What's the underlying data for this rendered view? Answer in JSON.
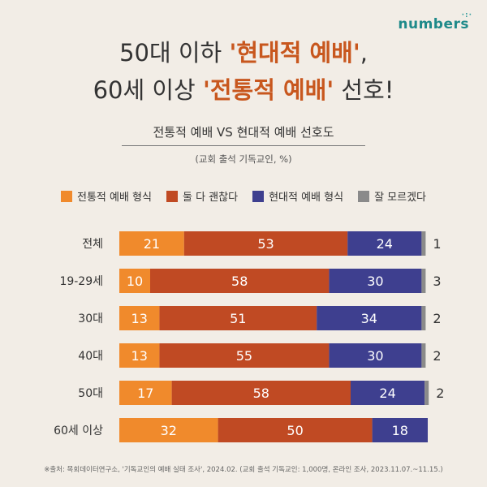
{
  "brand": {
    "logo_text": "numbers"
  },
  "headline": {
    "line1_pre": "50대 이하 ",
    "line1_highlight": "'현대적 예배'",
    "line1_post": ",",
    "line2_pre": "60세 이상 ",
    "line2_highlight": "'전통적 예배'",
    "line2_post": " 선호!"
  },
  "subtitle": "전통적 예배 VS 현대적 예배 선호도",
  "note": "(교회 출석 기독교인, %)",
  "legend": [
    {
      "label": "전통적 예배 형식",
      "color": "#f08a2c"
    },
    {
      "label": "둘 다 괜찮다",
      "color": "#c04a23"
    },
    {
      "label": "현대적 예배 형식",
      "color": "#3e3f8f"
    },
    {
      "label": "잘 모르겠다",
      "color": "#8a8a8a"
    }
  ],
  "chart_data": {
    "type": "bar",
    "orientation": "horizontal",
    "stacked": true,
    "title": "전통적 예배 VS 현대적 예배 선호도",
    "unit": "%",
    "categories": [
      "전체",
      "19-29세",
      "30대",
      "40대",
      "50대",
      "60세 이상"
    ],
    "series": [
      {
        "name": "전통적 예배 형식",
        "color": "#f08a2c",
        "values": [
          21,
          10,
          13,
          13,
          17,
          32
        ]
      },
      {
        "name": "둘 다 괜찮다",
        "color": "#c04a23",
        "values": [
          53,
          58,
          51,
          55,
          58,
          50
        ]
      },
      {
        "name": "현대적 예배 형식",
        "color": "#3e3f8f",
        "values": [
          24,
          30,
          34,
          30,
          24,
          18
        ]
      },
      {
        "name": "잘 모르겠다",
        "color": "#8a8a8a",
        "values": [
          1,
          3,
          2,
          2,
          2,
          0
        ]
      }
    ],
    "xlim": [
      0,
      100
    ]
  },
  "source": "※출처: 목회데이터연구소, '기독교인의 예배 실태 조사', 2024.02. (교회 출석 기독교인: 1,000명, 온라인 조사, 2023.11.07.~11.15.)"
}
